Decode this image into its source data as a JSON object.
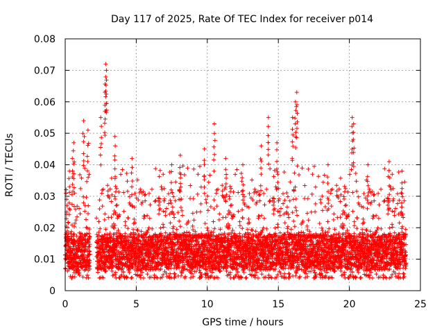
{
  "chart_data": {
    "type": "scatter",
    "title": "Day 117 of 2025, Rate Of TEC Index for receiver p014",
    "xlabel": "GPS time / hours",
    "ylabel": "ROTI / TECUs",
    "xlim": [
      0,
      25
    ],
    "ylim": [
      0,
      0.08
    ],
    "xticks": [
      0,
      5,
      10,
      15,
      20,
      25
    ],
    "xtick_labels": [
      "0",
      "5",
      "10",
      "15",
      "20",
      "25"
    ],
    "yticks": [
      0,
      0.01,
      0.02,
      0.03,
      0.04,
      0.05,
      0.06,
      0.07,
      0.08
    ],
    "ytick_labels": [
      "0",
      "0.01",
      "0.02",
      "0.03",
      "0.04",
      "0.05",
      "0.06",
      "0.07",
      "0.08"
    ],
    "grid": true,
    "marker": "+",
    "color": "#ff0000",
    "data_gap_hours": [
      [
        1.75,
        2.2
      ]
    ],
    "series": [
      {
        "name": "ROTI",
        "description_points": [
          {
            "x": 0.1,
            "y": 0.029
          },
          {
            "x": 0.3,
            "y": 0.038
          },
          {
            "x": 0.5,
            "y": 0.042
          },
          {
            "x": 0.6,
            "y": 0.047
          },
          {
            "x": 1.3,
            "y": 0.054
          },
          {
            "x": 1.6,
            "y": 0.051
          },
          {
            "x": 2.5,
            "y": 0.055
          },
          {
            "x": 2.85,
            "y": 0.072
          },
          {
            "x": 2.9,
            "y": 0.07
          },
          {
            "x": 2.8,
            "y": 0.063
          },
          {
            "x": 3.5,
            "y": 0.049
          },
          {
            "x": 4.7,
            "y": 0.042
          },
          {
            "x": 7.5,
            "y": 0.04
          },
          {
            "x": 8.1,
            "y": 0.043
          },
          {
            "x": 9.8,
            "y": 0.045
          },
          {
            "x": 10.5,
            "y": 0.053
          },
          {
            "x": 11.3,
            "y": 0.042
          },
          {
            "x": 12.5,
            "y": 0.04
          },
          {
            "x": 13.8,
            "y": 0.046
          },
          {
            "x": 14.3,
            "y": 0.055
          },
          {
            "x": 14.9,
            "y": 0.047
          },
          {
            "x": 16.0,
            "y": 0.055
          },
          {
            "x": 16.3,
            "y": 0.063
          },
          {
            "x": 16.2,
            "y": 0.06
          },
          {
            "x": 18.5,
            "y": 0.04
          },
          {
            "x": 20.2,
            "y": 0.055
          },
          {
            "x": 20.3,
            "y": 0.053
          },
          {
            "x": 21.3,
            "y": 0.04
          },
          {
            "x": 22.8,
            "y": 0.041
          },
          {
            "x": 23.7,
            "y": 0.038
          }
        ],
        "typical_range": [
          0.004,
          0.03
        ],
        "dense_band": [
          0.007,
          0.018
        ],
        "n_points": 5200
      }
    ]
  }
}
